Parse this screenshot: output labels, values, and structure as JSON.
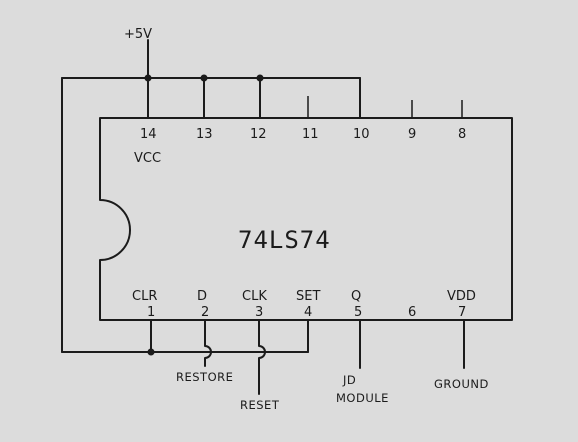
{
  "chip": {
    "part_number": "74LS74",
    "top_pins": [
      {
        "number": "14",
        "label": "VCC"
      },
      {
        "number": "13",
        "label": ""
      },
      {
        "number": "12",
        "label": ""
      },
      {
        "number": "11",
        "label": ""
      },
      {
        "number": "10",
        "label": ""
      },
      {
        "number": "9",
        "label": ""
      },
      {
        "number": "8",
        "label": ""
      }
    ],
    "bottom_pins": [
      {
        "number": "1",
        "label": "CLR"
      },
      {
        "number": "2",
        "label": "D"
      },
      {
        "number": "3",
        "label": "CLK"
      },
      {
        "number": "4",
        "label": "SET"
      },
      {
        "number": "5",
        "label": "Q"
      },
      {
        "number": "6",
        "label": ""
      },
      {
        "number": "7",
        "label": "VDD"
      }
    ]
  },
  "supply_label": "+5V",
  "net_labels": {
    "restore": "RESTORE",
    "reset": "RESET",
    "jd_line1": "JD",
    "jd_line2": "MODULE",
    "ground": "GROUND"
  }
}
